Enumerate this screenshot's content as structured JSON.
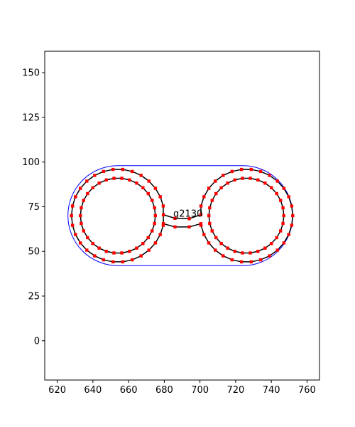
{
  "chart_data": {
    "type": "line",
    "title": "",
    "xlabel": "",
    "ylabel": "",
    "xlim": [
      613,
      767
    ],
    "ylim": [
      -22,
      162
    ],
    "xticks": [
      620,
      640,
      660,
      680,
      700,
      720,
      740,
      760
    ],
    "yticks": [
      0,
      25,
      50,
      75,
      100,
      125,
      150
    ],
    "grid": false,
    "legend": "none",
    "annotation": {
      "text": "g2130",
      "x": 689,
      "y": 71
    },
    "shape": {
      "left_circle_center": [
        654,
        70
      ],
      "right_circle_center": [
        726,
        70
      ],
      "inner_radius": 21,
      "outer_radius": 26,
      "bridge_upper": [
        [
          679.5,
          70.5
        ],
        [
          686,
          68.5
        ],
        [
          694,
          68.3
        ],
        [
          700.5,
          70.5
        ]
      ],
      "bridge_lower": [
        [
          679.5,
          65.5
        ],
        [
          686,
          63.7
        ],
        [
          694,
          63.7
        ],
        [
          700.5,
          65.5
        ]
      ],
      "outline": {
        "y_top": 98,
        "y_bottom": 42,
        "x_left_arc_center": 654,
        "x_right_arc_center": 724,
        "radius": 28
      }
    },
    "series": [
      {
        "role": "outline",
        "color": "#0000ff"
      },
      {
        "role": "contour",
        "color": "#000000"
      },
      {
        "role": "vertices",
        "color": "#ff0000"
      }
    ]
  }
}
